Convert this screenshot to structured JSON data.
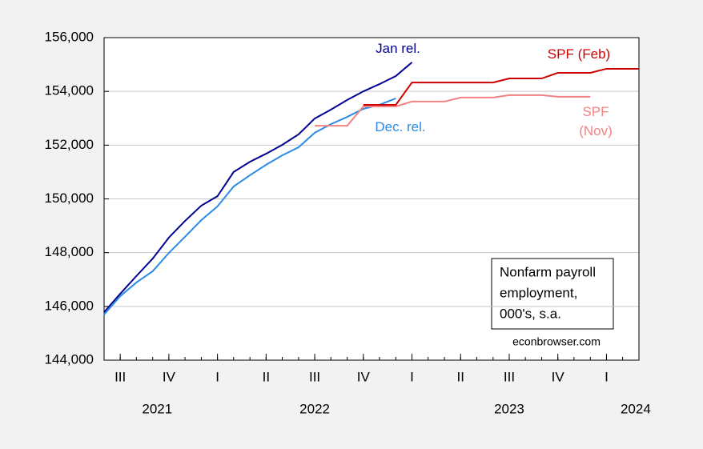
{
  "chart_data": {
    "type": "line",
    "x": [
      2021.417,
      2021.5,
      2021.583,
      2021.667,
      2021.75,
      2021.833,
      2021.917,
      2022,
      2022.083,
      2022.167,
      2022.25,
      2022.333,
      2022.417,
      2022.5,
      2022.583,
      2022.667,
      2022.75,
      2022.833,
      2022.917,
      2023,
      2023.083,
      2023.167,
      2023.25,
      2023.333,
      2023.417,
      2023.5,
      2023.583,
      2023.667,
      2023.75,
      2023.833,
      2023.917,
      2024,
      2024.083,
      2024.167
    ],
    "series": [
      {
        "name": "Jan rel.",
        "color": "#000090",
        "values": [
          145786,
          146470,
          147130,
          147780,
          148560,
          149180,
          149750,
          150100,
          151000,
          151380,
          151680,
          152010,
          152400,
          152990,
          153320,
          153680,
          154000,
          154270,
          154570,
          155080,
          null,
          null,
          null,
          null,
          null,
          null,
          null,
          null,
          null,
          null,
          null,
          null,
          null,
          null
        ]
      },
      {
        "name": "Dec. rel.",
        "color": "#2b8be6",
        "values": [
          145700,
          146380,
          146890,
          147310,
          147990,
          148590,
          149210,
          149720,
          150460,
          150880,
          151270,
          151620,
          151920,
          152460,
          152780,
          153050,
          153350,
          153500,
          153740,
          null,
          null,
          null,
          null,
          null,
          null,
          null,
          null,
          null,
          null,
          null,
          null,
          null,
          null,
          null
        ]
      },
      {
        "name": "SPF (Nov)",
        "color": "#f28282",
        "values": [
          null,
          null,
          null,
          null,
          null,
          null,
          null,
          null,
          null,
          null,
          null,
          null,
          null,
          152720,
          152720,
          152720,
          153440,
          153440,
          153440,
          153620,
          153620,
          153620,
          153770,
          153770,
          153770,
          153860,
          153860,
          153860,
          153800,
          153800,
          153800,
          null,
          null,
          null
        ]
      },
      {
        "name": "SPF (Feb)",
        "color": "#cc0000",
        "values": [
          null,
          null,
          null,
          null,
          null,
          null,
          null,
          null,
          null,
          null,
          null,
          null,
          null,
          null,
          null,
          null,
          153500,
          153500,
          153500,
          154330,
          154330,
          154330,
          154330,
          154330,
          154330,
          154480,
          154480,
          154480,
          154690,
          154690,
          154690,
          154840,
          154840,
          154840
        ]
      }
    ],
    "xlim": [
      2021.417,
      2024.167
    ],
    "xticks": [
      {
        "value": 2021.5,
        "label": "III"
      },
      {
        "value": 2021.75,
        "label": "IV"
      },
      {
        "value": 2022,
        "label": "I"
      },
      {
        "value": 2022.25,
        "label": "II"
      },
      {
        "value": 2022.5,
        "label": "III"
      },
      {
        "value": 2022.75,
        "label": "IV"
      },
      {
        "value": 2023,
        "label": "I"
      },
      {
        "value": 2023.25,
        "label": "II"
      },
      {
        "value": 2023.5,
        "label": "III"
      },
      {
        "value": 2023.75,
        "label": "IV"
      },
      {
        "value": 2024,
        "label": "I"
      }
    ],
    "year_labels": [
      {
        "value": 2021.69,
        "label": "2021"
      },
      {
        "value": 2022.5,
        "label": "2022"
      },
      {
        "value": 2023.5,
        "label": "2023"
      },
      {
        "value": 2024.15,
        "label": "2024"
      }
    ],
    "ylim": [
      144000,
      156000
    ],
    "yticks": [
      {
        "value": 144000,
        "label": "144,000"
      },
      {
        "value": 146000,
        "label": "146,000"
      },
      {
        "value": 148000,
        "label": "148,000"
      },
      {
        "value": 150000,
        "label": "150,000"
      },
      {
        "value": 152000,
        "label": "152,000"
      },
      {
        "value": 154000,
        "label": "154,000"
      },
      {
        "value": 156000,
        "label": "156,000"
      }
    ],
    "grid": true,
    "note": [
      "Nonfarm payroll",
      "employment,",
      "000's, s.a."
    ],
    "source": "econbrowser.com"
  }
}
